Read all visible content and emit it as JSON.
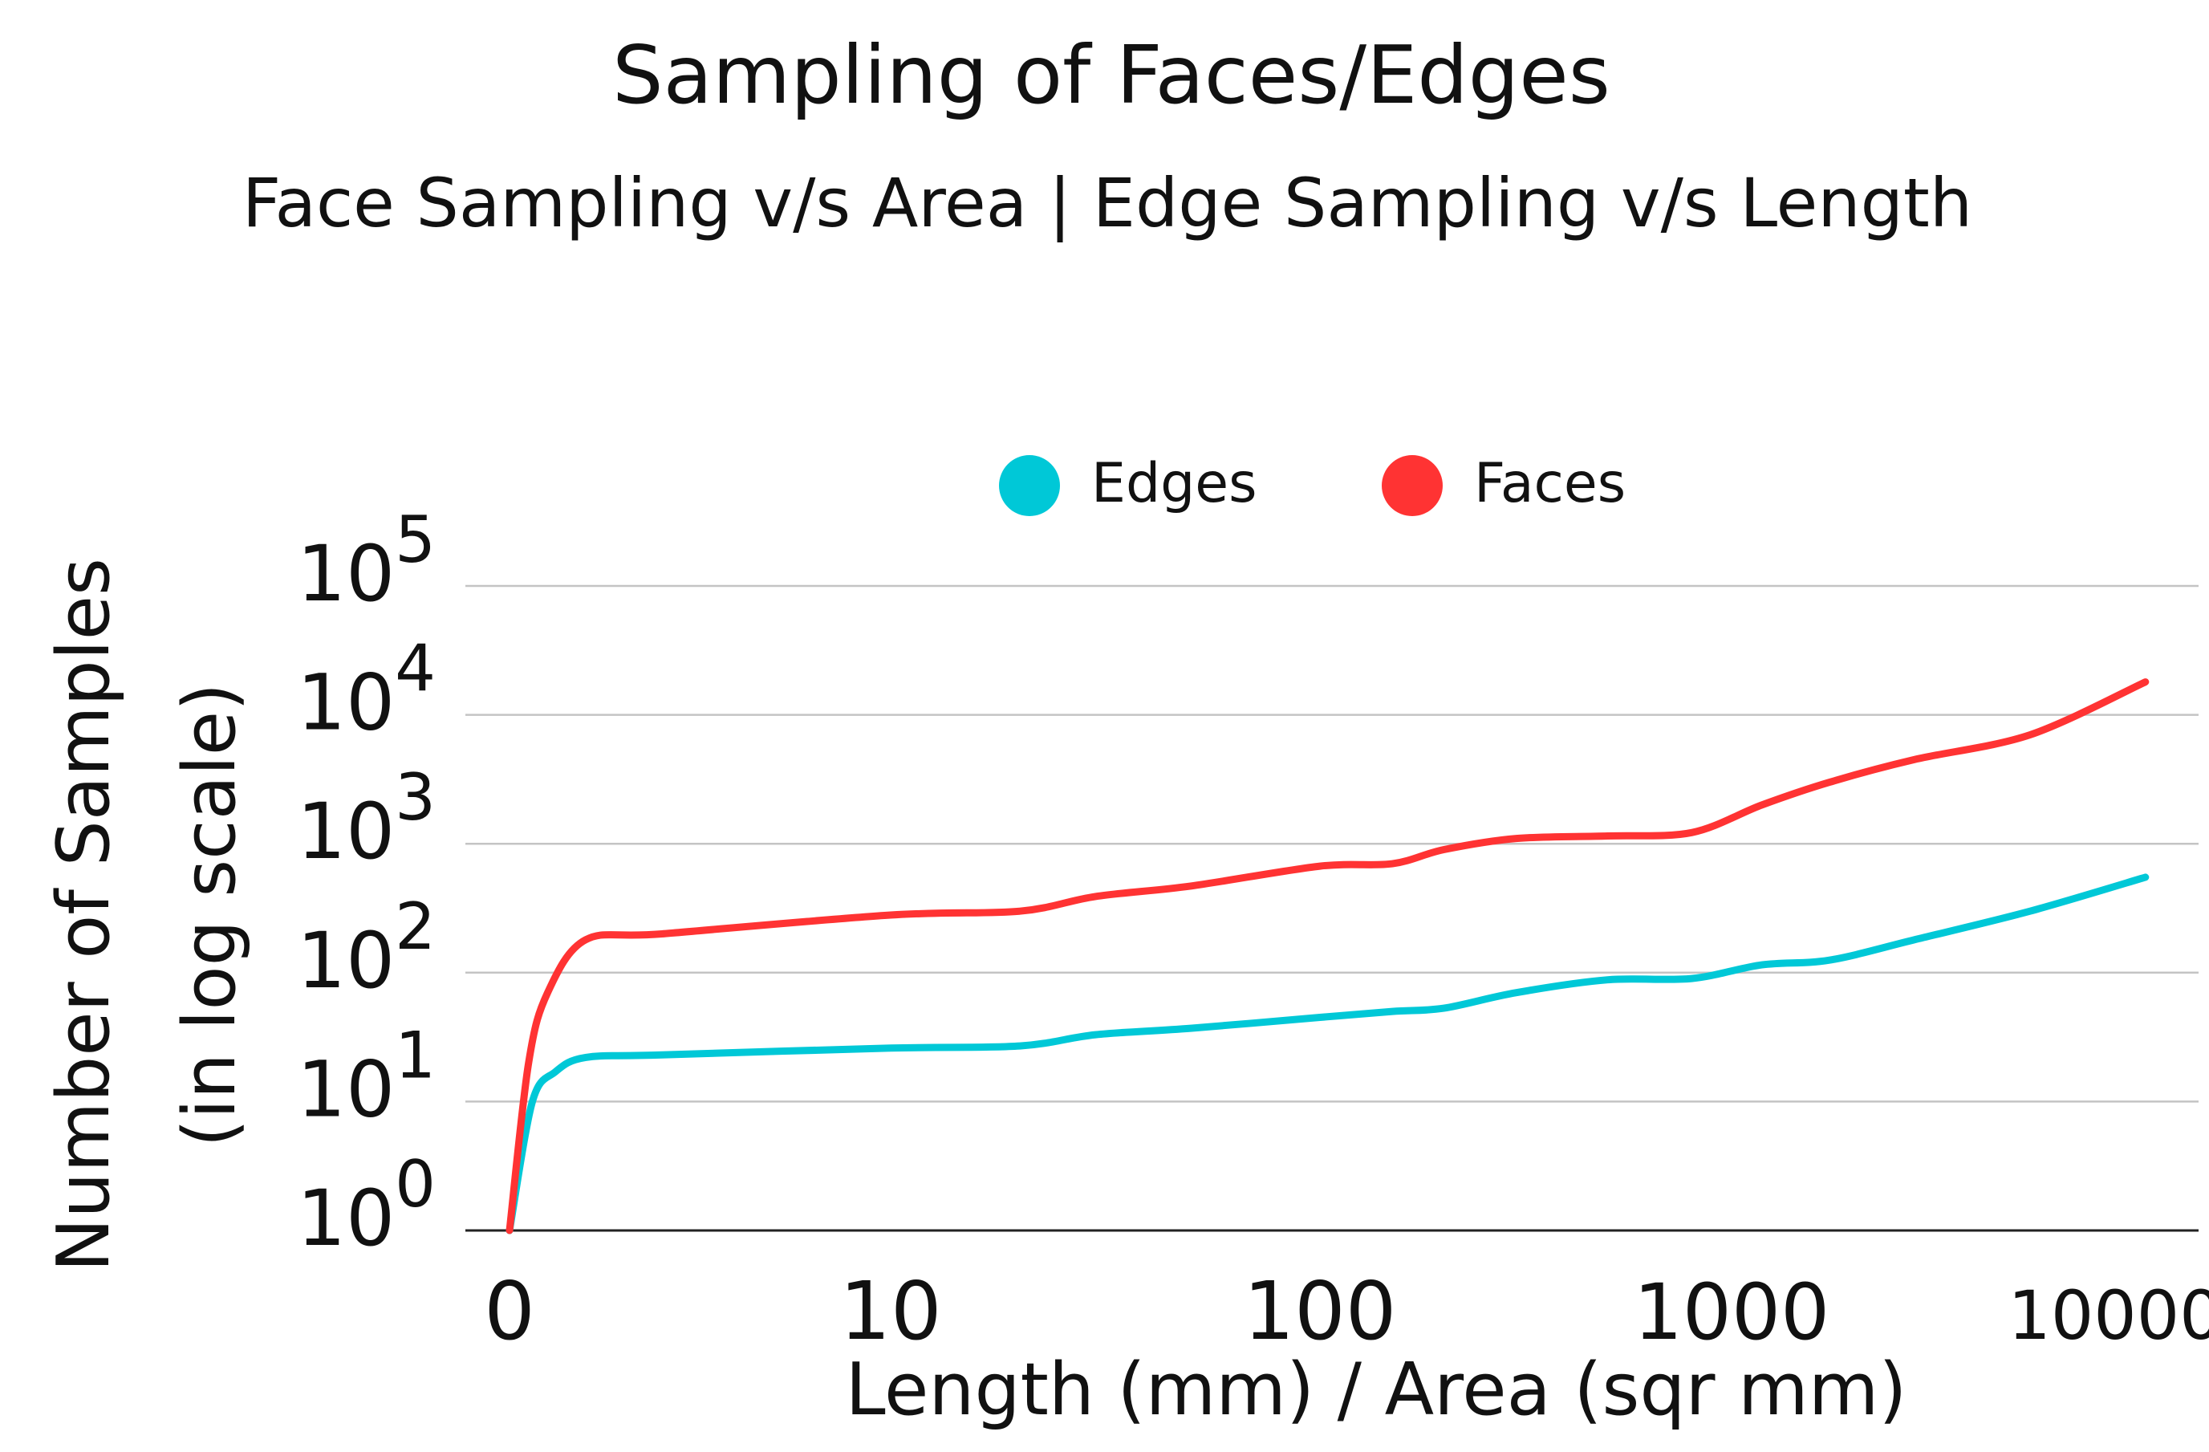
{
  "chart_data": {
    "type": "line",
    "title": "Sampling of Faces/Edges",
    "subtitle": "Face Sampling v/s Area | Edge Sampling v/s Length",
    "xlabel": "Length (mm) / Area (sqr mm)",
    "ylabel": [
      "Number of Samples",
      "(in log scale)"
    ],
    "y_scale": "log",
    "ylim": [
      1,
      100000
    ],
    "grid": true,
    "legend_position": "top-center",
    "x_ticks": [
      {
        "label": "0",
        "x": 0
      },
      {
        "label": "10",
        "x": 10
      },
      {
        "label": "100",
        "x": 100
      },
      {
        "label": "1000",
        "x": 1000
      },
      {
        "label": "10000",
        "x": 10000
      }
    ],
    "y_ticks": [
      {
        "base": "10",
        "exp": "0",
        "value": 1
      },
      {
        "base": "10",
        "exp": "1",
        "value": 10
      },
      {
        "base": "10",
        "exp": "2",
        "value": 100
      },
      {
        "base": "10",
        "exp": "3",
        "value": 1000
      },
      {
        "base": "10",
        "exp": "4",
        "value": 10000
      },
      {
        "base": "10",
        "exp": "5",
        "value": 100000
      }
    ],
    "series": [
      {
        "name": "Edges",
        "color": "#00C8D7",
        "points": [
          [
            0,
            1
          ],
          [
            0.6,
            10
          ],
          [
            1.2,
            17
          ],
          [
            2,
            22
          ],
          [
            4,
            23
          ],
          [
            10,
            26
          ],
          [
            20,
            27
          ],
          [
            30,
            33
          ],
          [
            50,
            37
          ],
          [
            100,
            45
          ],
          [
            150,
            50
          ],
          [
            200,
            53
          ],
          [
            300,
            70
          ],
          [
            500,
            88
          ],
          [
            800,
            90
          ],
          [
            1200,
            115
          ],
          [
            1800,
            125
          ],
          [
            3000,
            180
          ],
          [
            6000,
            300
          ],
          [
            12000,
            550
          ]
        ]
      },
      {
        "name": "Faces",
        "color": "#FF3333",
        "points": [
          [
            0,
            1
          ],
          [
            0.5,
            20
          ],
          [
            1,
            70
          ],
          [
            2,
            180
          ],
          [
            4,
            200
          ],
          [
            10,
            280
          ],
          [
            20,
            300
          ],
          [
            30,
            390
          ],
          [
            50,
            470
          ],
          [
            100,
            670
          ],
          [
            150,
            700
          ],
          [
            200,
            900
          ],
          [
            300,
            1100
          ],
          [
            500,
            1150
          ],
          [
            800,
            1220
          ],
          [
            1200,
            2000
          ],
          [
            1800,
            3000
          ],
          [
            3000,
            4500
          ],
          [
            6000,
            7000
          ],
          [
            12000,
            18000
          ]
        ]
      }
    ]
  }
}
